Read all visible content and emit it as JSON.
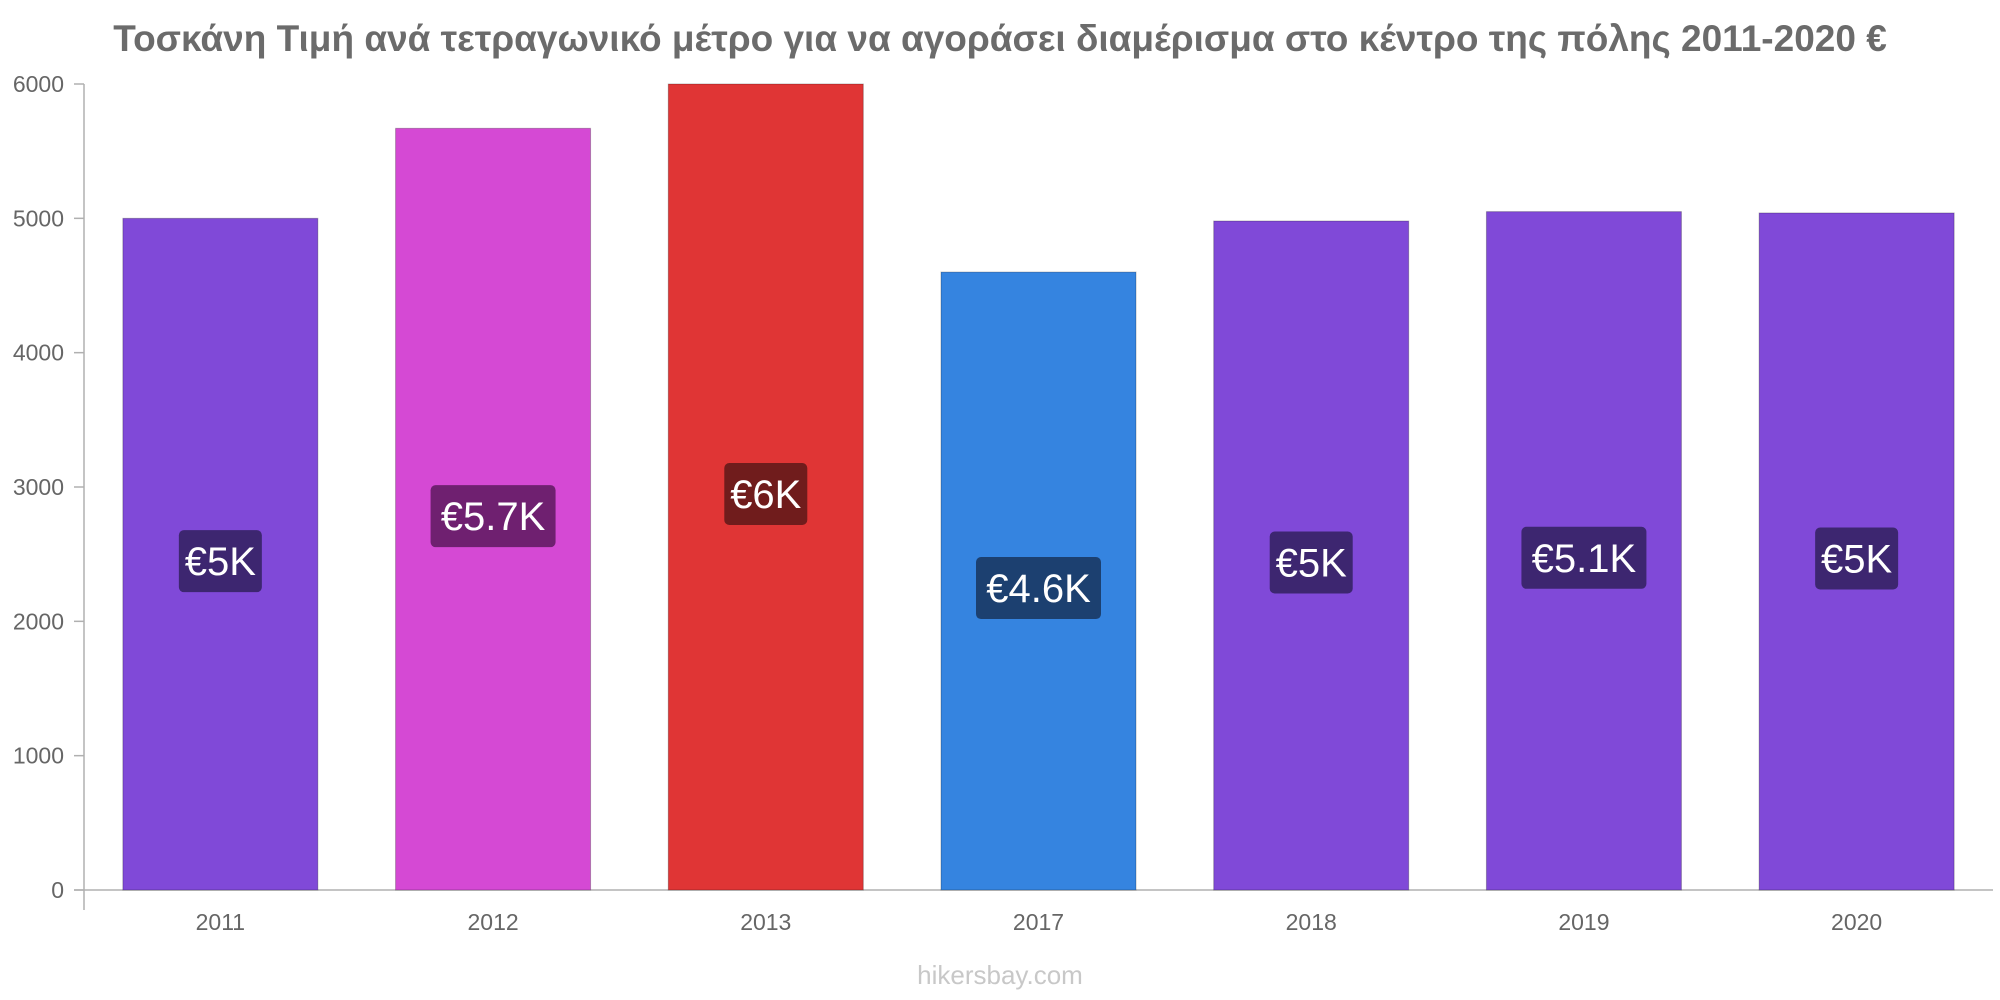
{
  "title": "Τοσκάνη Τιμή ανά τετραγωνικό μέτρο για να αγοράσει διαμέρισμα στο κέντρο της πόλης 2011-2020 €",
  "watermark": "hikersbay.com",
  "chart_data": {
    "type": "bar",
    "title": "Τοσκάνη Τιμή ανά τετραγωνικό μέτρο για να αγοράσει διαμέρισμα στο κέντρο της πόλης 2011-2020 €",
    "xlabel": "",
    "ylabel": "",
    "categories": [
      "2011",
      "2012",
      "2013",
      "2017",
      "2018",
      "2019",
      "2020"
    ],
    "values": [
      5000,
      5670,
      6000,
      4600,
      4980,
      5050,
      5040
    ],
    "data_labels": [
      "€5K",
      "€5.7K",
      "€6K",
      "€4.6K",
      "€5K",
      "€5.1K",
      "€5K"
    ],
    "ylim": [
      0,
      6000
    ],
    "yticks": [
      0,
      1000,
      2000,
      3000,
      4000,
      5000,
      6000
    ],
    "grid": false,
    "legend": "none",
    "bar_colors": [
      "#8049d8",
      "#d549d4",
      "#e03535",
      "#3584e0",
      "#8049d8",
      "#8049d8",
      "#8049d8"
    ],
    "label_box_colors": [
      "#3d2670",
      "#6f2070",
      "#701c1c",
      "#1c4070",
      "#3d2670",
      "#3d2670",
      "#3d2670"
    ]
  }
}
